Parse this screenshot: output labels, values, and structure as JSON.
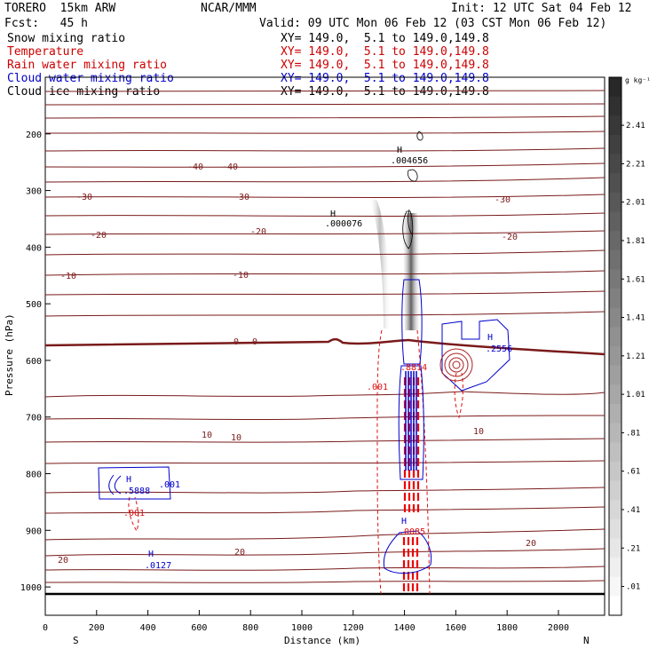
{
  "header": {
    "model": "TORERO  15km ARW",
    "center": "NCAR/MMM",
    "init": "Init: 12 UTC Sat 04 Feb 12",
    "fcst": "Fcst:   45 h",
    "valid": "Valid: 09 UTC Mon 06 Feb 12 (03 CST Mon 06 Feb 12)"
  },
  "legend": [
    {
      "label": "Snow mixing ratio",
      "xy": "XY= 149.0,  5.1 to 149.0,149.8",
      "color": "#000000"
    },
    {
      "label": "Temperature",
      "xy": "XY= 149.0,  5.1 to 149.0,149.8",
      "color": "#cc0000"
    },
    {
      "label": "Rain water mixing ratio",
      "xy": "XY= 149.0,  5.1 to 149.0,149.8",
      "color": "#cc0000"
    },
    {
      "label": "Cloud water mixing ratio",
      "xy": "XY= 149.0,  5.1 to 149.0,149.8",
      "color": "#0000cc"
    },
    {
      "label": "Cloud ice mixing ratio",
      "xy": "XY= 149.0,  5.1 to 149.0,149.8",
      "color": "#000000"
    }
  ],
  "chart_data": {
    "type": "contour cross-section",
    "xlabel": "Distance (km)",
    "ylabel": "Pressure (hPa)",
    "xlim": [
      0,
      2180
    ],
    "ylim": [
      1050,
      100
    ],
    "x_ticks": [
      0,
      200,
      400,
      600,
      800,
      1000,
      1200,
      1400,
      1600,
      1800,
      2000
    ],
    "y_ticks": [
      200,
      300,
      400,
      500,
      600,
      700,
      800,
      900,
      1000
    ],
    "x_end_labels": {
      "left": "S",
      "right": "N"
    },
    "colorbar": {
      "unit": "g kg⁻¹",
      "labels": [
        "2.41",
        "2.21",
        "2.01",
        "1.81",
        "1.61",
        "1.41",
        "1.21",
        "1.01",
        ".81",
        ".61",
        ".41",
        ".21",
        ".01"
      ]
    },
    "temperature_contours": [
      {
        "value": -40,
        "labels": [
          "-40",
          "-40"
        ]
      },
      {
        "value": -30,
        "labels": [
          "-30",
          "-30",
          "-30"
        ]
      },
      {
        "value": -20,
        "labels": [
          "-20",
          "-20",
          "-20"
        ]
      },
      {
        "value": -10,
        "labels": [
          "-10",
          "-10"
        ]
      },
      {
        "value": 0,
        "labels": [
          "0",
          "0"
        ]
      },
      {
        "value": 10,
        "labels": [
          "10",
          "10",
          "10"
        ]
      },
      {
        "value": 20,
        "labels": [
          "20",
          "20",
          "20"
        ]
      }
    ],
    "annotations": [
      {
        "text": "H",
        "value": ".004656",
        "x_km": 1390,
        "p_hPa": 185,
        "field": "cloud ice"
      },
      {
        "text": "H",
        "value": ".000076",
        "x_km": 1120,
        "p_hPa": 345,
        "field": "snow"
      },
      {
        "text": "H",
        "value": ".2556",
        "x_km": 1740,
        "p_hPa": 590,
        "field": "rain"
      },
      {
        "text": "H",
        "value": ".5888",
        "x_km": 320,
        "p_hPa": 820,
        "field": "cloud water"
      },
      {
        "text": "",
        "value": ".001",
        "x_km": 450,
        "p_hPa": 828,
        "field": "cloud water"
      },
      {
        "text": "",
        "value": ".001",
        "x_km": 340,
        "p_hPa": 870,
        "field": "rain"
      },
      {
        "text": "",
        "value": ".001",
        "x_km": 1310,
        "p_hPa": 652,
        "field": "rain"
      },
      {
        "text": "H",
        "value": ".0127",
        "x_km": 390,
        "p_hPa": 965,
        "field": "cloud water"
      },
      {
        "text": "H",
        "value": ".0085",
        "x_km": 1390,
        "p_hPa": 918,
        "field": "rain"
      },
      {
        "text": "",
        "value": ".8814",
        "x_km": 1390,
        "p_hPa": 623,
        "field": "rain"
      }
    ]
  }
}
